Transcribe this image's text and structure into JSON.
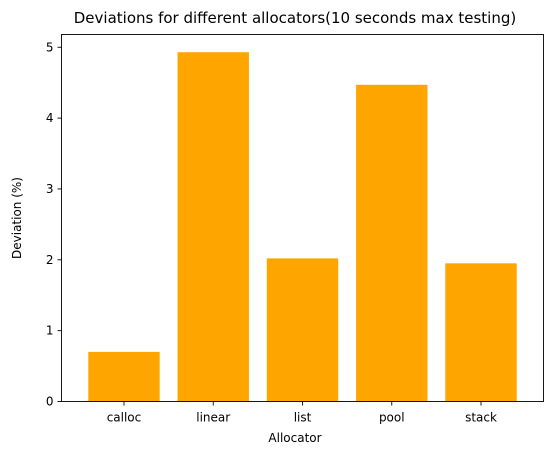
{
  "chart_data": {
    "type": "bar",
    "title": "Deviations for different allocators(10 seconds max testing)",
    "xlabel": "Allocator",
    "ylabel": "Deviation (%)",
    "categories": [
      "calloc",
      "linear",
      "list",
      "pool",
      "stack"
    ],
    "values": [
      0.7,
      4.93,
      2.02,
      4.47,
      1.95
    ],
    "ylim": [
      0,
      5.18
    ],
    "yticks": [
      0,
      1,
      2,
      3,
      4,
      5
    ],
    "bar_color": "#FFA500",
    "grid": false,
    "legend": "none"
  }
}
